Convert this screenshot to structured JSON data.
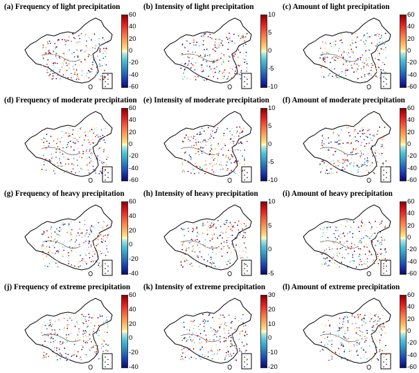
{
  "panels": [
    {
      "title": "(a) Frequency of light precipitation",
      "colorbar_ticks": [
        "60",
        "40",
        "20",
        "0",
        "-20",
        "-40",
        "-60"
      ]
    },
    {
      "title": "(b) Intensity of light precipitation",
      "colorbar_ticks": [
        "10",
        "5",
        "0",
        "-5",
        "-10"
      ]
    },
    {
      "title": "(c) Amount of light precipitation",
      "colorbar_ticks": [
        "60",
        "40",
        "20",
        "0",
        "-20",
        "-40",
        "-60"
      ]
    },
    {
      "title": "(d) Frequency of moderate precipitation",
      "colorbar_ticks": [
        "60",
        "40",
        "20",
        "0",
        "-20",
        "-40",
        "-60"
      ]
    },
    {
      "title": "(e) Intensity of moderate precipitation",
      "colorbar_ticks": [
        "10",
        "5",
        "0",
        "-5",
        "-10"
      ]
    },
    {
      "title": "(f) Amount of moderate precipitation",
      "colorbar_ticks": [
        "60",
        "40",
        "20",
        "0",
        "-20",
        "-40",
        "-60"
      ]
    },
    {
      "title": "(g) Frequency of heavy precipitation",
      "colorbar_ticks": [
        "60",
        "40",
        "20",
        "0",
        "-20",
        "-40"
      ]
    },
    {
      "title": "(h) Intensity of heavy precipitation",
      "colorbar_ticks": [
        "10",
        "5",
        "0",
        "-5"
      ]
    },
    {
      "title": "(i) Amount of heavy precipitation",
      "colorbar_ticks": [
        "60",
        "40",
        "20",
        "0",
        "-20",
        "-40",
        "-60"
      ]
    },
    {
      "title": "(j) Frequency of extreme precipitation",
      "colorbar_ticks": [
        "60",
        "40",
        "20",
        "0",
        "-20",
        "-40"
      ]
    },
    {
      "title": "(k) Intensity of extreme precipitation",
      "colorbar_ticks": [
        "30",
        "20",
        "10",
        "0",
        "-10",
        "-20"
      ]
    },
    {
      "title": "(l) Amount of extreme precipitation",
      "colorbar_ticks": [
        "60",
        "40",
        "20",
        "0",
        "-20",
        "-40",
        "-60"
      ]
    }
  ],
  "colors": {
    "colormap": [
      "#0a0a6b",
      "#1c3fb5",
      "#2b83ba",
      "#4fc3d9",
      "#b8e6e0",
      "#ffffbf",
      "#fee08b",
      "#fdae61",
      "#f46d43",
      "#e31a1c",
      "#8b0000"
    ],
    "outline": "#000000"
  }
}
